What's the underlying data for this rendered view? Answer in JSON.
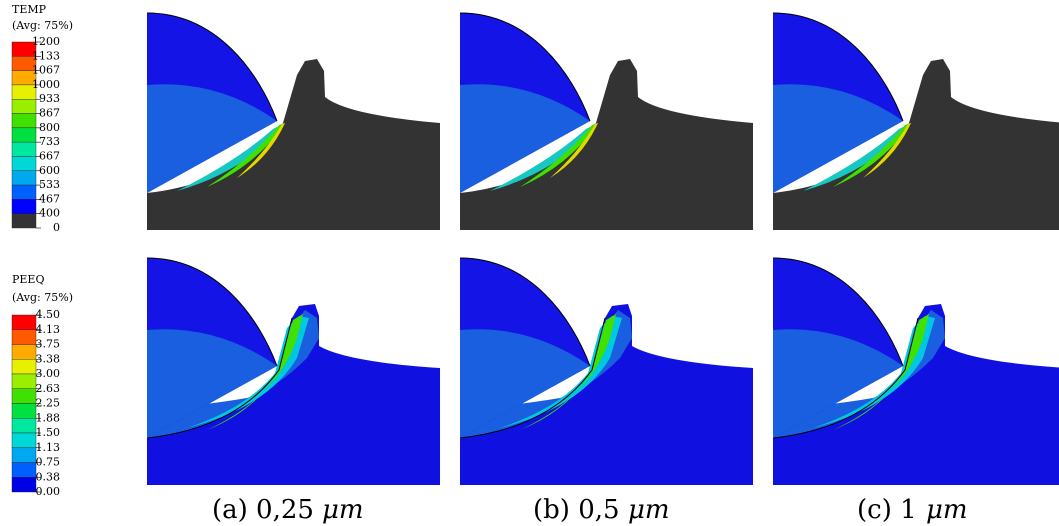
{
  "legends": [
    {
      "title": "TEMP",
      "subtitle": "(Avg: 75%)",
      "labels": [
        "1200",
        "1133",
        "1067",
        "1000",
        "933",
        "867",
        "800",
        "733",
        "667",
        "600",
        "533",
        "467",
        "400",
        "0"
      ]
    },
    {
      "title": "PEEQ",
      "subtitle": "(Avg: 75%)",
      "labels": [
        "4.50",
        "4.13",
        "3.75",
        "3.38",
        "3.00",
        "2.63",
        "2.25",
        "1.88",
        "1.50",
        "1.13",
        "0.75",
        "0.38",
        "0.00"
      ]
    }
  ],
  "captions": [
    {
      "label": "(a) 0,25",
      "unit": "μm"
    },
    {
      "label": "(b) 0,5",
      "unit": "μm"
    },
    {
      "label": "(c) 1",
      "unit": "μm"
    }
  ]
}
